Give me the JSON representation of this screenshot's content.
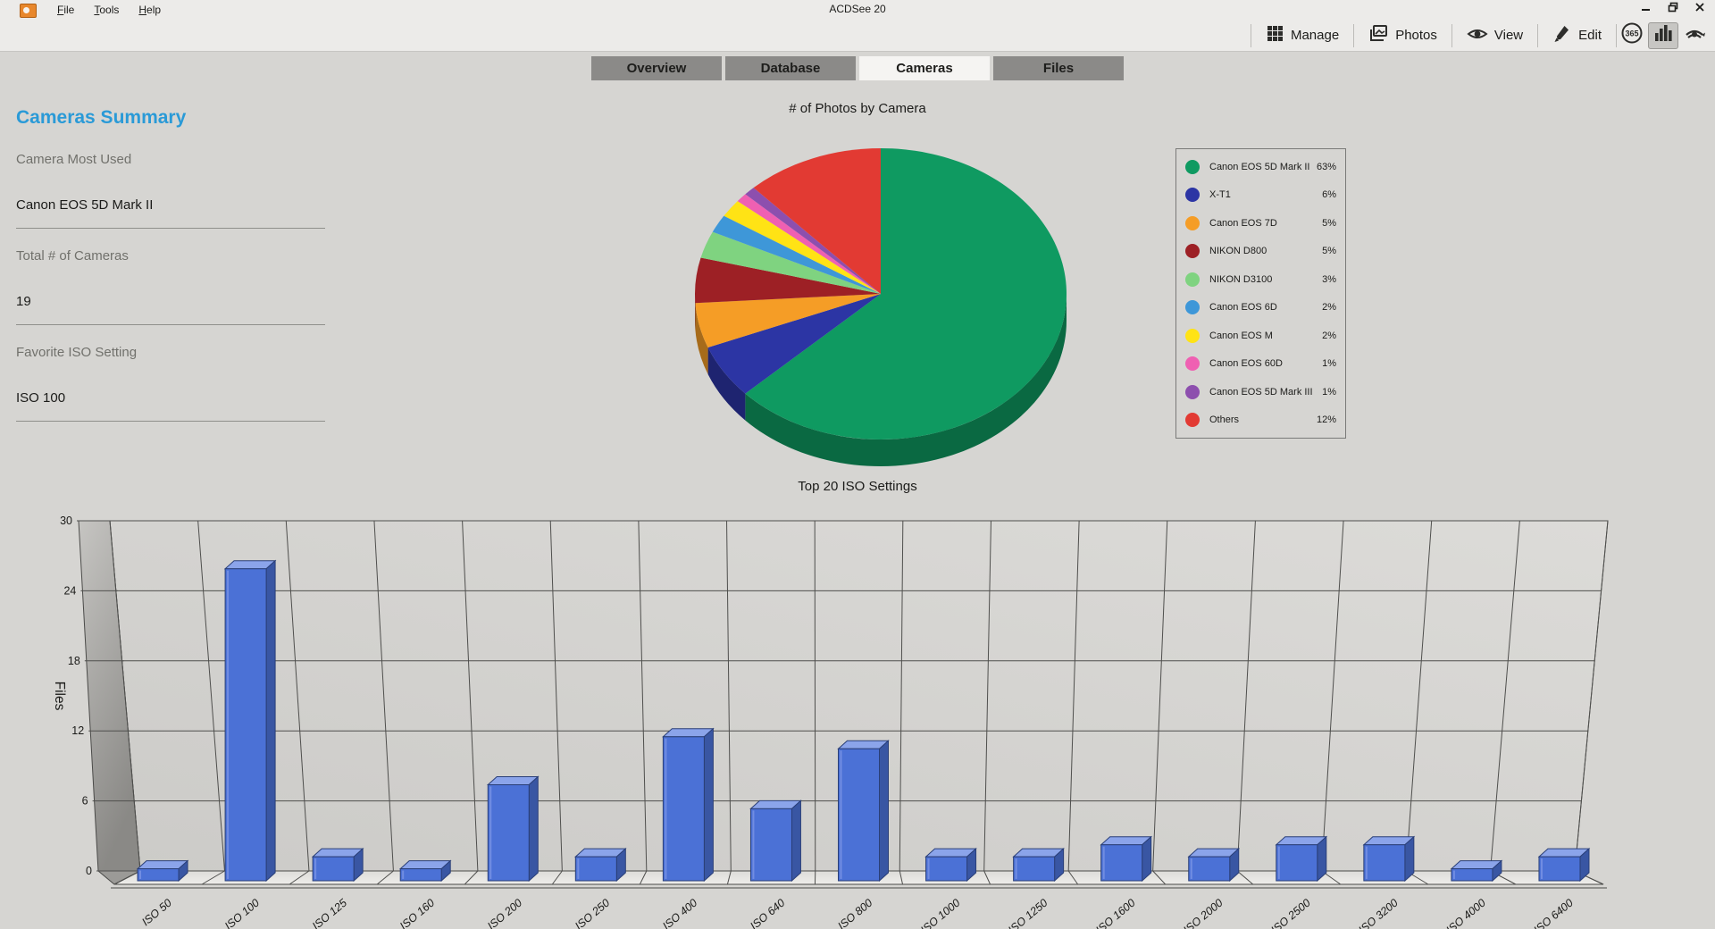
{
  "window": {
    "title": "ACDSee 20",
    "menu": [
      {
        "label": "File"
      },
      {
        "label": "Tools"
      },
      {
        "label": "Help"
      }
    ],
    "controls": [
      {
        "name": "minimize",
        "glyph": "minimize-icon"
      },
      {
        "name": "restore",
        "glyph": "restore-icon"
      },
      {
        "name": "close",
        "glyph": "close-icon"
      }
    ]
  },
  "modebar": {
    "buttons": [
      {
        "label": "Manage",
        "icon": "grid-icon"
      },
      {
        "label": "Photos",
        "icon": "photos-icon"
      },
      {
        "label": "View",
        "icon": "eye-icon"
      },
      {
        "label": "Edit",
        "icon": "knife-icon"
      }
    ],
    "tools": [
      {
        "name": "365",
        "icon": "365-icon",
        "pressed": false
      },
      {
        "name": "dashboard",
        "icon": "stats-bars-icon",
        "pressed": true
      },
      {
        "name": "sync",
        "icon": "sync-eye-icon",
        "pressed": false
      }
    ]
  },
  "tabs": [
    {
      "label": "Overview",
      "active": false
    },
    {
      "label": "Database",
      "active": false
    },
    {
      "label": "Cameras",
      "active": true
    },
    {
      "label": "Files",
      "active": false
    }
  ],
  "summary": {
    "title": "Cameras Summary",
    "fields": [
      {
        "label": "Camera Most Used",
        "value": "Canon EOS 5D Mark II"
      },
      {
        "label": "Total # of Cameras",
        "value": "19"
      },
      {
        "label": "Favorite ISO Setting",
        "value": "ISO 100"
      }
    ]
  },
  "chart_data": [
    {
      "type": "pie",
      "title": "# of Photos by Camera",
      "labels": [
        "Canon EOS 5D Mark II",
        "X-T1",
        "Canon EOS 7D",
        "NIKON D800",
        "NIKON D3100",
        "Canon EOS 6D",
        "Canon EOS M",
        "Canon EOS 60D",
        "Canon EOS 5D Mark III",
        "Others"
      ],
      "values": [
        63,
        6,
        5,
        5,
        3,
        2,
        2,
        1,
        1,
        12
      ],
      "unit": "%",
      "colors": [
        "#0f9a61",
        "#2c35a4",
        "#f59d26",
        "#9d2025",
        "#7fd380",
        "#3e97d8",
        "#ffe315",
        "#ef60b2",
        "#8d4fae",
        "#e23a33"
      ],
      "legend_position": "right",
      "style": "3d-pie, starts at 12 o'clock, clockwise"
    },
    {
      "type": "bar",
      "title": "Top 20 ISO Settings",
      "xlabel": "",
      "ylabel": "Files",
      "ylim": [
        0,
        30
      ],
      "yticks": [
        0,
        6,
        12,
        18,
        24,
        30
      ],
      "categories": [
        "ISO 50",
        "ISO 100",
        "ISO 125",
        "ISO 160",
        "ISO 200",
        "ISO 250",
        "ISO 400",
        "ISO 640",
        "ISO 800",
        "ISO 1000",
        "ISO 1250",
        "ISO 1600",
        "ISO 2000",
        "ISO 2500",
        "ISO 3200",
        "ISO 4000",
        "ISO 6400"
      ],
      "values": [
        1,
        26,
        2,
        1,
        8,
        2,
        12,
        6,
        11,
        2,
        2,
        3,
        2,
        3,
        3,
        1,
        2
      ],
      "bar_color": "#4b71d6",
      "grid": true,
      "style": "3d-bars on gray perspective wall"
    }
  ]
}
